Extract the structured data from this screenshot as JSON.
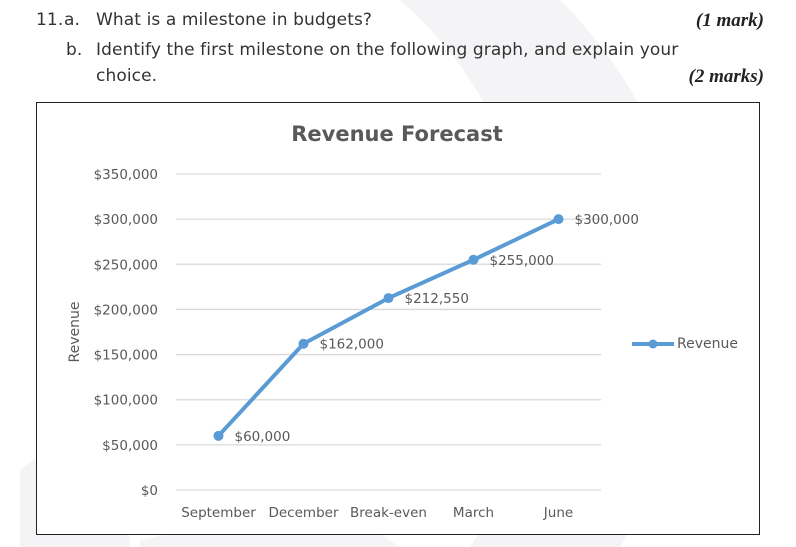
{
  "question": {
    "number": "11.",
    "part_a": {
      "label": "a.",
      "text": "What is a milestone in budgets?",
      "marks": "(1 mark)"
    },
    "part_b": {
      "label": "b.",
      "text_line1": "Identify the first milestone on the following graph, and explain your",
      "text_line2": "choice.",
      "marks": "(2 marks)"
    }
  },
  "chart_data": {
    "type": "line",
    "title": "Revenue Forecast",
    "xlabel": "",
    "ylabel": "Revenue",
    "categories": [
      "September",
      "December",
      "Break-even",
      "March",
      "June"
    ],
    "series": [
      {
        "name": "Revenue",
        "values": [
          60000,
          162000,
          212550,
          255000,
          300000
        ],
        "color": "#5b9bd5"
      }
    ],
    "data_labels": [
      "$60,000",
      "$162,000",
      "$212,550",
      "$255,000",
      "$300,000"
    ],
    "ylim": [
      0,
      350000
    ],
    "yticks": [
      "$0",
      "$50,000",
      "$100,000",
      "$150,000",
      "$200,000",
      "$250,000",
      "$300,000",
      "$350,000"
    ],
    "grid": true,
    "legend_position": "right"
  },
  "legend": {
    "label": "Revenue"
  }
}
